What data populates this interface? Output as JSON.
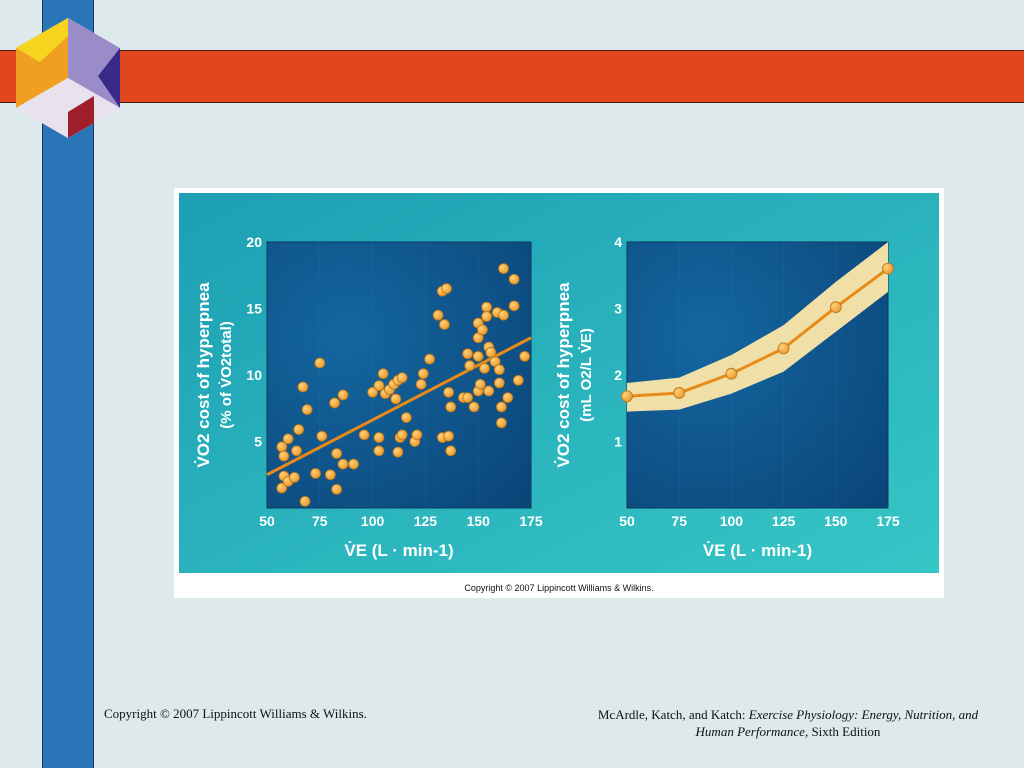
{
  "figure_copyright": "Copyright © 2007 Lippincott Williams & Wilkins.",
  "footer": {
    "copyright": "Copyright © 2007 Lippincott Williams & Wilkins.",
    "authors": "McArdle, Katch, and Katch: ",
    "title_italic": "Exercise Physiology: Energy, Nutrition, and Human Performance,",
    "edition": " Sixth Edition"
  },
  "colors": {
    "background": "#dde9ea",
    "red_bar": "#e2461f",
    "blue_bar": "#2a74b8",
    "panel_teal": "#2ab8bd",
    "plot_blue": "#0f5a8e",
    "point": "#f2b347",
    "line": "#e88a1a",
    "band": "#fde7a8"
  },
  "chart_data": [
    {
      "type": "scatter",
      "ylabel_line1": "V̇O2 cost of hyperpnea",
      "ylabel_line2": "(% of V̇O2total)",
      "xlabel": "V̇E (L · min-1)",
      "xlim": [
        50,
        175
      ],
      "ylim": [
        0,
        20
      ],
      "xticks": [
        "50",
        "75",
        "100",
        "125",
        "150",
        "175"
      ],
      "yticks": [
        "5",
        "10",
        "15",
        "20"
      ],
      "trendline": [
        [
          50,
          2.5
        ],
        [
          175,
          12.8
        ]
      ],
      "points": [
        [
          57,
          1.5
        ],
        [
          58,
          2.4
        ],
        [
          60,
          2
        ],
        [
          63,
          2.3
        ],
        [
          57,
          4.6
        ],
        [
          58,
          3.9
        ],
        [
          60,
          5.2
        ],
        [
          64,
          4.3
        ],
        [
          65,
          5.9
        ],
        [
          68,
          0.5
        ],
        [
          69,
          7.4
        ],
        [
          67,
          9.1
        ],
        [
          73,
          2.6
        ],
        [
          75,
          10.9
        ],
        [
          76,
          5.4
        ],
        [
          80,
          2.5
        ],
        [
          83,
          1.4
        ],
        [
          82,
          7.9
        ],
        [
          83,
          4.1
        ],
        [
          86,
          3.3
        ],
        [
          86,
          8.5
        ],
        [
          91,
          3.3
        ],
        [
          96,
          5.5
        ],
        [
          100,
          8.7
        ],
        [
          103,
          9.2
        ],
        [
          105,
          10.1
        ],
        [
          106,
          8.6
        ],
        [
          103,
          5.3
        ],
        [
          103,
          4.3
        ],
        [
          108,
          8.9
        ],
        [
          110,
          9.3
        ],
        [
          111,
          8.2
        ],
        [
          112,
          9.6
        ],
        [
          114,
          9.8
        ],
        [
          113,
          5.3
        ],
        [
          114,
          5.5
        ],
        [
          112,
          4.2
        ],
        [
          116,
          6.8
        ],
        [
          120,
          5
        ],
        [
          121,
          5.5
        ],
        [
          123,
          9.3
        ],
        [
          124,
          10.1
        ],
        [
          127,
          11.2
        ],
        [
          131,
          14.5
        ],
        [
          133,
          5.3
        ],
        [
          133,
          16.3
        ],
        [
          134,
          13.8
        ],
        [
          135,
          16.5
        ],
        [
          136,
          8.7
        ],
        [
          136,
          5.4
        ],
        [
          137,
          7.6
        ],
        [
          137,
          4.3
        ],
        [
          143,
          8.3
        ],
        [
          145,
          8.3
        ],
        [
          145,
          11.6
        ],
        [
          146,
          10.7
        ],
        [
          148,
          7.6
        ],
        [
          150,
          8.8
        ],
        [
          150,
          11.4
        ],
        [
          150,
          12.8
        ],
        [
          150,
          13.9
        ],
        [
          151,
          9.3
        ],
        [
          152,
          13.4
        ],
        [
          153,
          10.5
        ],
        [
          154,
          15.1
        ],
        [
          155,
          8.8
        ],
        [
          154,
          14.4
        ],
        [
          155,
          12.1
        ],
        [
          156,
          11.7
        ],
        [
          158,
          11
        ],
        [
          159,
          14.7
        ],
        [
          160,
          10.4
        ],
        [
          161,
          7.6
        ],
        [
          161,
          6.4
        ],
        [
          162,
          18
        ],
        [
          162,
          14.5
        ],
        [
          160,
          9.4
        ],
        [
          164,
          8.3
        ],
        [
          167,
          15.2
        ],
        [
          167,
          17.2
        ],
        [
          169,
          9.6
        ],
        [
          172,
          11.4
        ]
      ]
    },
    {
      "type": "line",
      "ylabel_line1": "V̇O2 cost of hyperpnea",
      "ylabel_line2": "(mL O2/L V̇E)",
      "xlabel": "V̇E (L · min-1)",
      "xlim": [
        50,
        175
      ],
      "ylim": [
        0,
        4
      ],
      "xticks": [
        "50",
        "75",
        "100",
        "125",
        "150",
        "175"
      ],
      "yticks": [
        "1",
        "2",
        "3",
        "4"
      ],
      "x": [
        50,
        75,
        100,
        125,
        150,
        175
      ],
      "y": [
        1.68,
        1.73,
        2.02,
        2.4,
        3.02,
        3.6
      ],
      "band_upper": [
        1.88,
        1.96,
        2.3,
        2.75,
        3.4,
        4.0
      ],
      "band_lower": [
        1.45,
        1.48,
        1.72,
        2.05,
        2.65,
        3.25
      ]
    }
  ]
}
